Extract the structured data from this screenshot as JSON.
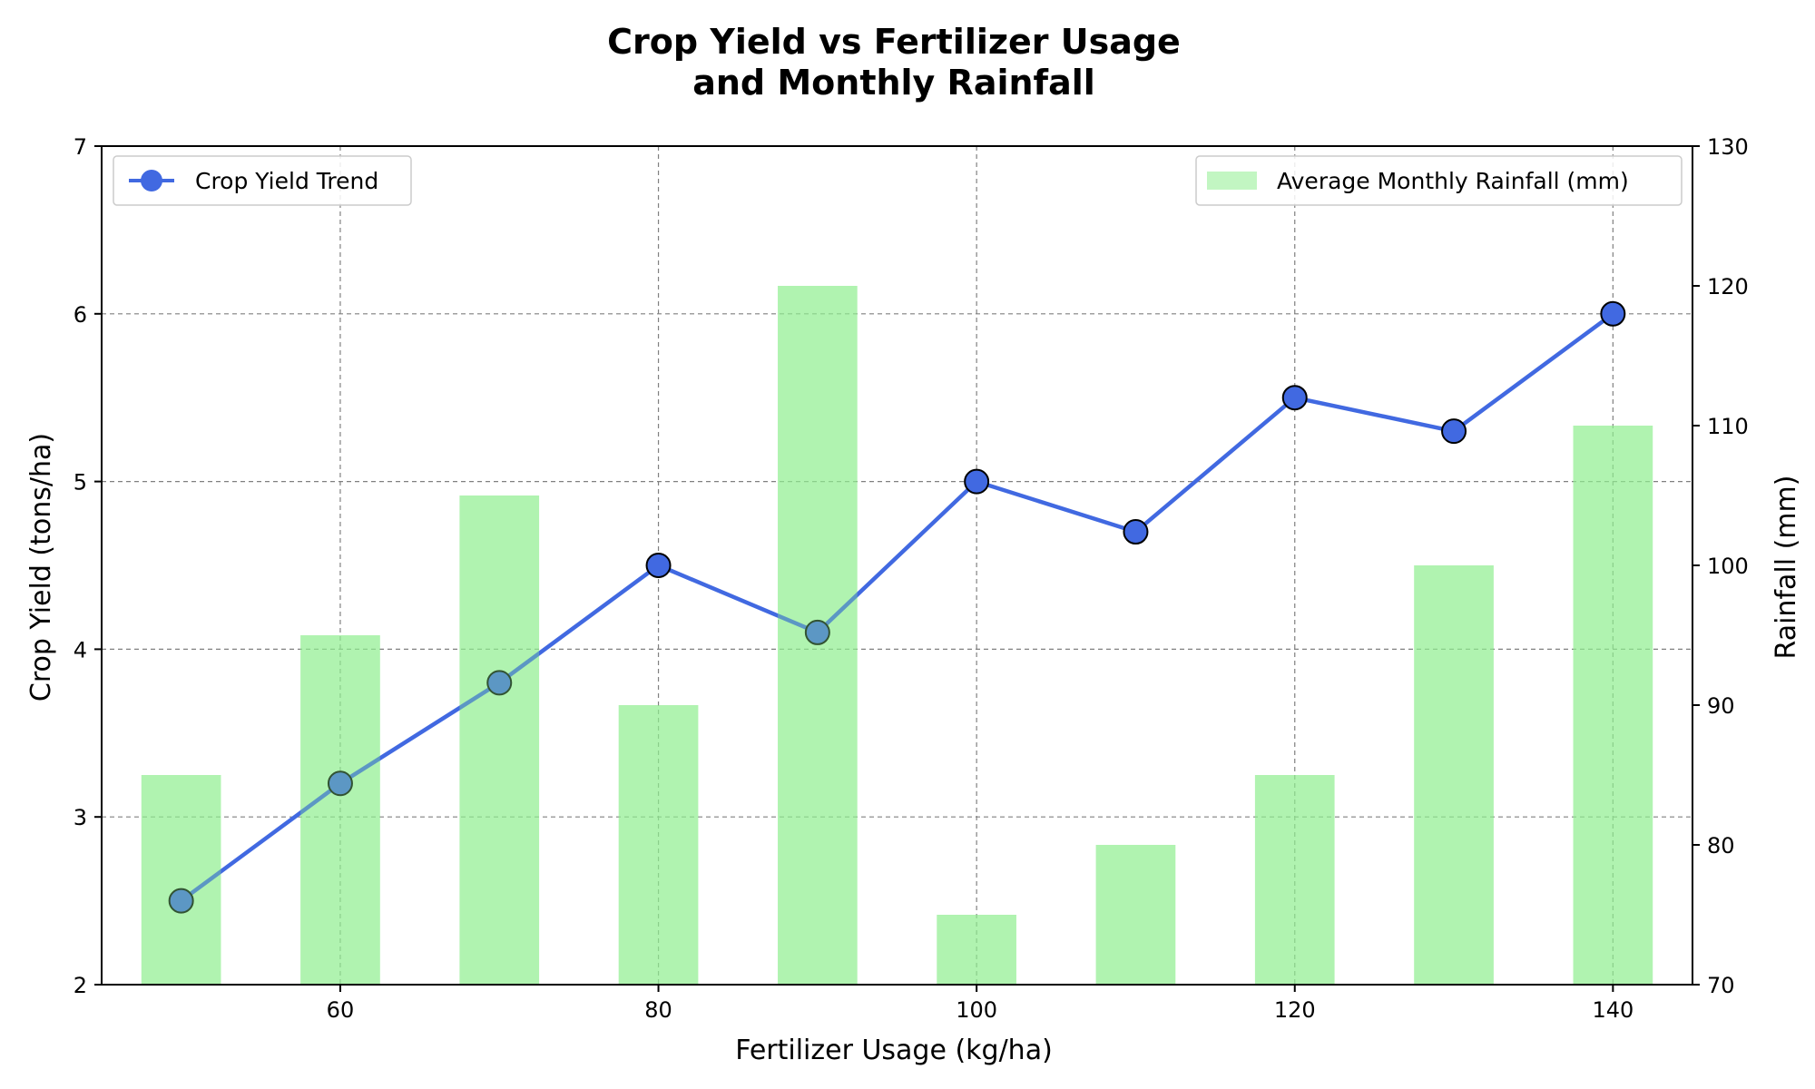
{
  "chart_data": {
    "type": "bar+line",
    "title_lines": [
      "Crop Yield vs Fertilizer Usage",
      "and Monthly Rainfall"
    ],
    "xlabel": "Fertilizer Usage (kg/ha)",
    "ylabel_left": "Crop Yield (tons/ha)",
    "ylabel_right": "Rainfall (mm)",
    "xlim": [
      45,
      145
    ],
    "ylim_left": [
      2,
      7
    ],
    "ylim_right": [
      70,
      130
    ],
    "x_ticks": [
      60,
      80,
      100,
      120,
      140
    ],
    "y_left_ticks": [
      2,
      3,
      4,
      5,
      6,
      7
    ],
    "y_right_ticks": [
      70,
      80,
      90,
      100,
      110,
      120,
      130
    ],
    "grid": true,
    "x": [
      50,
      60,
      70,
      80,
      90,
      100,
      110,
      120,
      130,
      140
    ],
    "series": [
      {
        "name": "Crop Yield Trend",
        "kind": "line",
        "axis": "left",
        "color": "#4169e1",
        "values": [
          2.5,
          3.2,
          3.8,
          4.5,
          4.1,
          5.0,
          4.7,
          5.5,
          5.3,
          6.0
        ]
      },
      {
        "name": "Average Monthly Rainfall (mm)",
        "kind": "bar",
        "axis": "right",
        "color": "#90ee90",
        "values": [
          85,
          95,
          105,
          90,
          120,
          75,
          80,
          85,
          100,
          110
        ]
      }
    ],
    "legends": [
      {
        "series": "Crop Yield Trend",
        "placement": "upper-left"
      },
      {
        "series": "Average Monthly Rainfall (mm)",
        "placement": "upper-right"
      }
    ]
  }
}
